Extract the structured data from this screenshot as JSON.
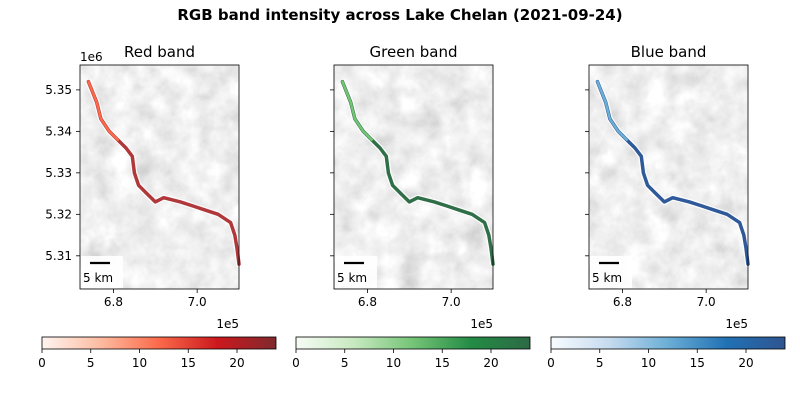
{
  "suptitle": "RGB band intensity across Lake Chelan (2021-09-24)",
  "chart_data": [
    {
      "type": "heatmap",
      "title": "Red band",
      "x_multiplier_label": "1e5",
      "y_multiplier_label": "1e6",
      "xlim": [
        6.72,
        7.1
      ],
      "ylim": [
        5.302,
        5.356
      ],
      "x_ticks": [
        "6.8",
        "7.0"
      ],
      "x_tick_values": [
        6.8,
        7.0
      ],
      "y_ticks": [
        "5.31",
        "5.32",
        "5.33",
        "5.34",
        "5.35"
      ],
      "y_tick_values": [
        5.31,
        5.32,
        5.33,
        5.34,
        5.35
      ],
      "scalebar_label": "5 km",
      "colorbar": {
        "cmap": "reds",
        "range": [
          0,
          24
        ],
        "ticks": [
          "0",
          "5",
          "10",
          "15",
          "20"
        ],
        "tick_values": [
          0,
          5,
          10,
          15,
          20
        ]
      },
      "lake_path": [
        [
          6.74,
          5.352
        ],
        [
          6.76,
          5.347
        ],
        [
          6.77,
          5.343
        ],
        [
          6.79,
          5.34
        ],
        [
          6.81,
          5.338
        ],
        [
          6.83,
          5.336
        ],
        [
          6.845,
          5.334
        ],
        [
          6.85,
          5.33
        ],
        [
          6.86,
          5.327
        ],
        [
          6.88,
          5.325
        ],
        [
          6.9,
          5.323
        ],
        [
          6.92,
          5.324
        ],
        [
          6.96,
          5.323
        ],
        [
          6.99,
          5.322
        ],
        [
          7.02,
          5.321
        ],
        [
          7.05,
          5.32
        ],
        [
          7.08,
          5.318
        ],
        [
          7.09,
          5.315
        ],
        [
          7.095,
          5.312
        ],
        [
          7.1,
          5.308
        ]
      ]
    },
    {
      "type": "heatmap",
      "title": "Green band",
      "x_multiplier_label": "1e5",
      "xlim": [
        6.72,
        7.1
      ],
      "ylim": [
        5.302,
        5.356
      ],
      "x_ticks": [
        "6.8",
        "7.0"
      ],
      "x_tick_values": [
        6.8,
        7.0
      ],
      "scalebar_label": "5 km",
      "colorbar": {
        "cmap": "greens",
        "range": [
          0,
          24
        ],
        "ticks": [
          "0",
          "5",
          "10",
          "15",
          "20"
        ],
        "tick_values": [
          0,
          5,
          10,
          15,
          20
        ]
      },
      "lake_path": [
        [
          6.74,
          5.352
        ],
        [
          6.76,
          5.347
        ],
        [
          6.77,
          5.343
        ],
        [
          6.79,
          5.34
        ],
        [
          6.81,
          5.338
        ],
        [
          6.83,
          5.336
        ],
        [
          6.845,
          5.334
        ],
        [
          6.85,
          5.33
        ],
        [
          6.86,
          5.327
        ],
        [
          6.88,
          5.325
        ],
        [
          6.9,
          5.323
        ],
        [
          6.92,
          5.324
        ],
        [
          6.96,
          5.323
        ],
        [
          6.99,
          5.322
        ],
        [
          7.02,
          5.321
        ],
        [
          7.05,
          5.32
        ],
        [
          7.08,
          5.318
        ],
        [
          7.09,
          5.315
        ],
        [
          7.095,
          5.312
        ],
        [
          7.1,
          5.308
        ]
      ]
    },
    {
      "type": "heatmap",
      "title": "Blue band",
      "x_multiplier_label": "1e5",
      "xlim": [
        6.72,
        7.1
      ],
      "ylim": [
        5.302,
        5.356
      ],
      "x_ticks": [
        "6.8",
        "7.0"
      ],
      "x_tick_values": [
        6.8,
        7.0
      ],
      "scalebar_label": "5 km",
      "colorbar": {
        "cmap": "blues",
        "range": [
          0,
          24
        ],
        "ticks": [
          "0",
          "5",
          "10",
          "15",
          "20"
        ],
        "tick_values": [
          0,
          5,
          10,
          15,
          20
        ]
      },
      "lake_path": [
        [
          6.74,
          5.352
        ],
        [
          6.76,
          5.347
        ],
        [
          6.77,
          5.343
        ],
        [
          6.79,
          5.34
        ],
        [
          6.81,
          5.338
        ],
        [
          6.83,
          5.336
        ],
        [
          6.845,
          5.334
        ],
        [
          6.85,
          5.33
        ],
        [
          6.86,
          5.327
        ],
        [
          6.88,
          5.325
        ],
        [
          6.9,
          5.323
        ],
        [
          6.92,
          5.324
        ],
        [
          6.96,
          5.323
        ],
        [
          6.99,
          5.322
        ],
        [
          7.02,
          5.321
        ],
        [
          7.05,
          5.32
        ],
        [
          7.08,
          5.318
        ],
        [
          7.09,
          5.315
        ],
        [
          7.095,
          5.312
        ],
        [
          7.1,
          5.308
        ]
      ]
    }
  ],
  "colors": {
    "reds": [
      "#fff5f0",
      "#fcbba1",
      "#fb6a4a",
      "#cb181d",
      "#7f2a2e"
    ],
    "greens": [
      "#f7fcf5",
      "#c7e9c0",
      "#74c476",
      "#238b45",
      "#2d6a45"
    ],
    "blues": [
      "#f7fbff",
      "#c6dbef",
      "#6baed6",
      "#2171b5",
      "#2f5590"
    ]
  }
}
